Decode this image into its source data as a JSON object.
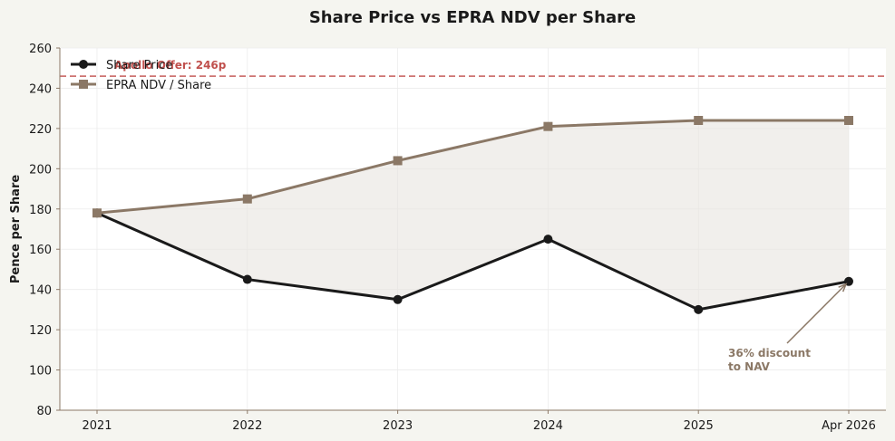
{
  "chart_data": {
    "type": "line",
    "title": "Share Price vs EPRA NDV per Share",
    "xlabel": "",
    "ylabel": "Pence per Share",
    "categories": [
      "2021",
      "2022",
      "2023",
      "2024",
      "2025",
      "Apr 2026"
    ],
    "ylim": [
      80,
      260
    ],
    "yticks": [
      80,
      100,
      120,
      140,
      160,
      180,
      200,
      220,
      240,
      260
    ],
    "grid": true,
    "legend_position": "top-left",
    "series": [
      {
        "name": "Share Price",
        "values": [
          178,
          145,
          135,
          165,
          130,
          144
        ],
        "color": "#1a1a1a",
        "marker": "circle"
      },
      {
        "name": "EPRA NDV / Share",
        "values": [
          178,
          185,
          204,
          221,
          224,
          224
        ],
        "color": "#8b7866",
        "marker": "square"
      }
    ],
    "fill_between": {
      "color": "#e8e4e0"
    },
    "reference_line": {
      "value": 246,
      "label": "Apollo Offer: 246p",
      "color": "#c0504d"
    },
    "annotation": {
      "lines": [
        "36% discount",
        "to NAV"
      ],
      "target_category_index": 5,
      "target_value": 144,
      "color": "#8b7866"
    }
  }
}
